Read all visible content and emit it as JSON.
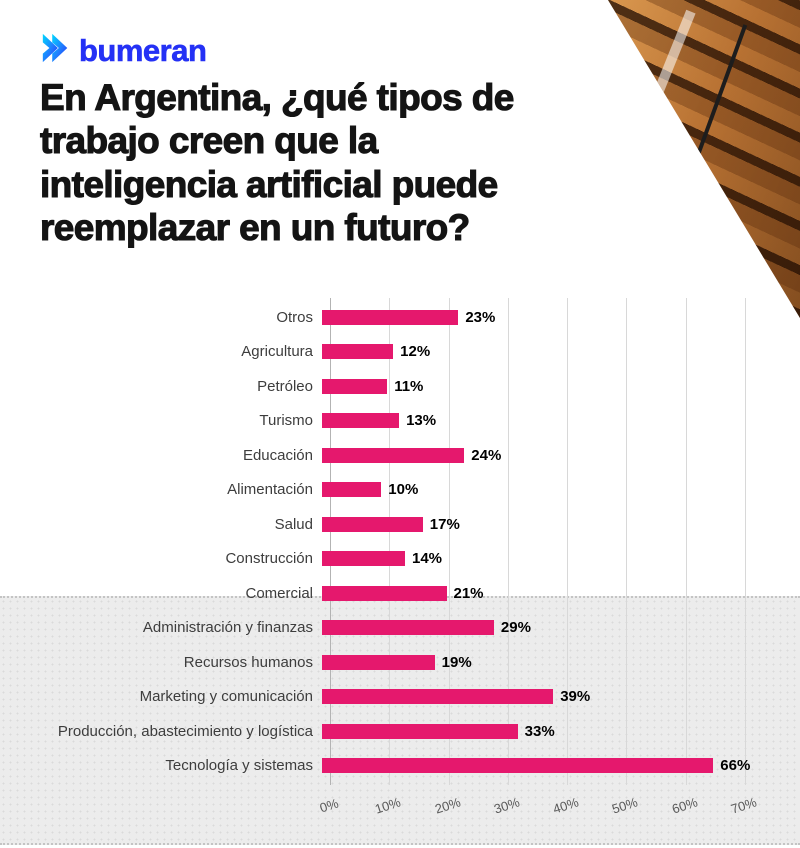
{
  "brand": {
    "logo_text": "bumeran",
    "logo_color": "#2431f5"
  },
  "title_lines": [
    "En Argentina, ¿qué tipos de",
    "trabajo creen que la",
    "inteligencia artificial puede",
    "reemplazar en un futuro?"
  ],
  "chart_data": {
    "type": "bar",
    "orientation": "horizontal",
    "title": "En Argentina, ¿qué tipos de trabajo creen que la inteligencia artificial puede reemplazar en un futuro?",
    "categories": [
      "Otros",
      "Agricultura",
      "Petróleo",
      "Turismo",
      "Educación",
      "Alimentación",
      "Salud",
      "Construcción",
      "Comercial",
      "Administración y finanzas",
      "Recursos humanos",
      "Marketing y comunicación",
      "Producción, abastecimiento y logística",
      "Tecnología y sistemas"
    ],
    "values": [
      23,
      12,
      11,
      13,
      24,
      10,
      17,
      14,
      21,
      29,
      19,
      39,
      33,
      66
    ],
    "value_labels": [
      "23%",
      "12%",
      "11%",
      "13%",
      "24%",
      "10%",
      "17%",
      "14%",
      "21%",
      "29%",
      "19%",
      "39%",
      "33%",
      "66%"
    ],
    "x_ticks": [
      "0%",
      "10%",
      "20%",
      "30%",
      "40%",
      "50%",
      "60%",
      "70%"
    ],
    "xlim": [
      0,
      70
    ],
    "bar_color": "#e5186d",
    "grid": true,
    "legend": false
  }
}
